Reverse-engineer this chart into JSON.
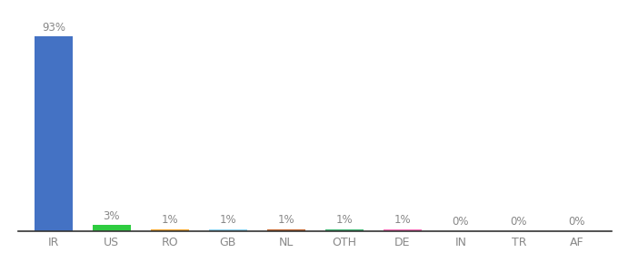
{
  "categories": [
    "IR",
    "US",
    "RO",
    "GB",
    "NL",
    "OTH",
    "DE",
    "IN",
    "TR",
    "AF"
  ],
  "values": [
    93,
    3,
    1,
    1,
    1,
    1,
    1,
    0,
    0,
    0
  ],
  "display_values": [
    93,
    3,
    1,
    1,
    1,
    1,
    1,
    0.3,
    0.3,
    0.3
  ],
  "labels": [
    "93%",
    "3%",
    "1%",
    "1%",
    "1%",
    "1%",
    "1%",
    "0%",
    "0%",
    "0%"
  ],
  "colors": [
    "#4472C4",
    "#2ECC40",
    "#F4A227",
    "#87CEEB",
    "#C0622A",
    "#3CB371",
    "#FF69B4",
    "#FFFFFF",
    "#FFFFFF",
    "#FFFFFF"
  ],
  "background_color": "#FFFFFF",
  "ylim": [
    0,
    100
  ],
  "bar_width": 0.65,
  "label_color": "#888888",
  "tick_color": "#888888",
  "spine_color": "#333333"
}
